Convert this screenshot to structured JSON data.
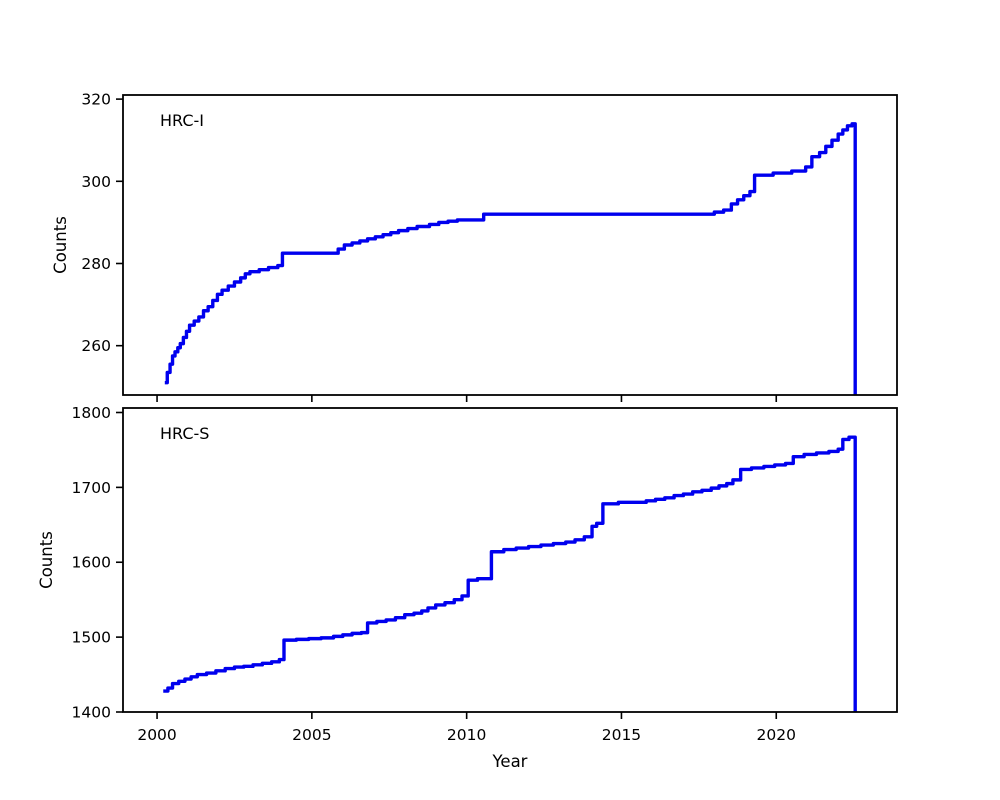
{
  "figure": {
    "background": "#ffffff",
    "line_color": "#0000ee",
    "axis_color": "#000000"
  },
  "chart_data": [
    {
      "type": "line",
      "title": "HRC-I",
      "ylabel": "Counts",
      "xlabel": "",
      "legend": "none",
      "grid": false,
      "step": true,
      "line_color": "#0000ee",
      "line_width": 3.4,
      "xlim": [
        1998.9,
        2023.9
      ],
      "ylim": [
        248,
        321
      ],
      "xticks": [
        2000,
        2005,
        2010,
        2015,
        2020
      ],
      "xtick_labels": [
        "2000",
        "2005",
        "2010",
        "2015",
        "2020"
      ],
      "yticks": [
        260,
        280,
        300,
        320
      ],
      "ytick_labels": [
        "260",
        "280",
        "300",
        "320"
      ],
      "x": [
        2000.25,
        2000.33,
        2000.42,
        2000.5,
        2000.58,
        2000.67,
        2000.75,
        2000.85,
        2000.95,
        2001.05,
        2001.2,
        2001.35,
        2001.5,
        2001.65,
        2001.8,
        2001.95,
        2002.1,
        2002.3,
        2002.5,
        2002.7,
        2002.85,
        2003.0,
        2003.3,
        2003.6,
        2003.9,
        2004.05,
        2005.6,
        2005.85,
        2006.05,
        2006.3,
        2006.55,
        2006.8,
        2007.05,
        2007.3,
        2007.55,
        2007.8,
        2008.1,
        2008.4,
        2008.8,
        2009.1,
        2009.4,
        2009.7,
        2010.55,
        2017.75,
        2018.0,
        2018.3,
        2018.55,
        2018.75,
        2018.95,
        2019.15,
        2019.3,
        2019.9,
        2020.5,
        2020.95,
        2021.15,
        2021.4,
        2021.6,
        2021.8,
        2022.0,
        2022.15,
        2022.3,
        2022.45,
        2022.55,
        2022.55
      ],
      "y": [
        251,
        253.5,
        255.5,
        257.5,
        258.5,
        259.5,
        260.5,
        262,
        263.5,
        265,
        266,
        267,
        268.5,
        269.5,
        271,
        272.5,
        273.5,
        274.5,
        275.5,
        276.5,
        277.5,
        278,
        278.5,
        279,
        279.5,
        282.5,
        282.5,
        283.5,
        284.5,
        285,
        285.5,
        286,
        286.5,
        287,
        287.5,
        288,
        288.5,
        289,
        289.5,
        290,
        290.3,
        290.6,
        292,
        292,
        292.5,
        293,
        294.5,
        295.5,
        296.5,
        297.5,
        301.5,
        302,
        302.5,
        303.5,
        306,
        307,
        308.5,
        310,
        311.5,
        312.5,
        313.5,
        314,
        314,
        248
      ]
    },
    {
      "type": "line",
      "title": "HRC-S",
      "ylabel": "Counts",
      "xlabel": "Year",
      "legend": "none",
      "grid": false,
      "step": true,
      "line_color": "#0000ee",
      "line_width": 3.4,
      "xlim": [
        1998.9,
        2023.9
      ],
      "ylim": [
        1400,
        1806
      ],
      "xticks": [
        2000,
        2005,
        2010,
        2015,
        2020
      ],
      "xtick_labels": [
        "2000",
        "2005",
        "2010",
        "2015",
        "2020"
      ],
      "yticks": [
        1400,
        1500,
        1600,
        1700,
        1800
      ],
      "ytick_labels": [
        "1400",
        "1500",
        "1600",
        "1700",
        "1800"
      ],
      "x": [
        2000.2,
        2000.35,
        2000.5,
        2000.7,
        2000.9,
        2001.1,
        2001.3,
        2001.6,
        2001.9,
        2002.2,
        2002.5,
        2002.8,
        2003.1,
        2003.4,
        2003.7,
        2003.95,
        2004.1,
        2004.5,
        2004.9,
        2005.3,
        2005.7,
        2006.0,
        2006.3,
        2006.6,
        2006.8,
        2007.1,
        2007.4,
        2007.7,
        2008.0,
        2008.3,
        2008.55,
        2008.75,
        2009.0,
        2009.3,
        2009.6,
        2009.85,
        2010.05,
        2010.35,
        2010.8,
        2011.2,
        2011.6,
        2012.0,
        2012.4,
        2012.8,
        2013.2,
        2013.5,
        2013.8,
        2014.05,
        2014.2,
        2014.4,
        2014.9,
        2015.4,
        2015.8,
        2016.1,
        2016.4,
        2016.7,
        2017.0,
        2017.3,
        2017.6,
        2017.9,
        2018.15,
        2018.4,
        2018.6,
        2018.85,
        2019.2,
        2019.6,
        2019.95,
        2020.3,
        2020.55,
        2020.9,
        2021.3,
        2021.7,
        2022.0,
        2022.15,
        2022.35,
        2022.55,
        2022.55
      ],
      "y": [
        1428,
        1432,
        1438,
        1441,
        1444,
        1447,
        1450,
        1452,
        1455,
        1458,
        1460,
        1461,
        1463,
        1465,
        1467,
        1470,
        1496,
        1497,
        1498,
        1499,
        1501,
        1503,
        1505,
        1506,
        1519,
        1521,
        1523,
        1526,
        1530,
        1532,
        1535,
        1539,
        1543,
        1546,
        1550,
        1555,
        1576,
        1578,
        1614,
        1617,
        1619,
        1621,
        1623,
        1625,
        1627,
        1630,
        1634,
        1648,
        1652,
        1678,
        1680,
        1680,
        1682,
        1684,
        1686,
        1689,
        1691,
        1694,
        1696,
        1699,
        1702,
        1705,
        1710,
        1724,
        1726,
        1728,
        1730,
        1732,
        1741,
        1744,
        1746,
        1748,
        1751,
        1764,
        1767,
        1767,
        1400
      ]
    }
  ]
}
